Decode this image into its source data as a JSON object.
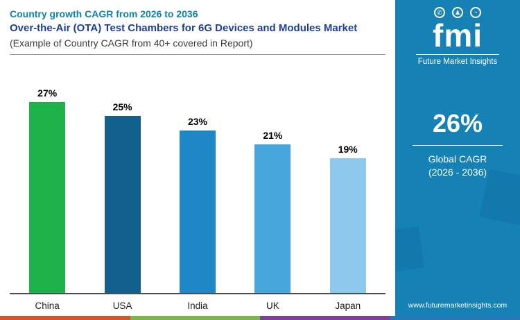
{
  "header": {
    "line1": "Country growth CAGR from 2026 to 2036",
    "line2": "Over-the-Air (OTA) Test Chambers for 6G Devices and Modules Market",
    "line3": "(Example of Country CAGR from 40+ covered in Report)"
  },
  "chart_data": {
    "type": "bar",
    "title": "Country growth CAGR from 2026 to 2036",
    "categories": [
      "China",
      "USA",
      "India",
      "UK",
      "Japan"
    ],
    "values": [
      27,
      25,
      23,
      21,
      19
    ],
    "value_labels": [
      "27%",
      "25%",
      "23%",
      "21%",
      "19%"
    ],
    "bar_colors": [
      "#1fb24b",
      "#11608d",
      "#1e88c7",
      "#47a6dc",
      "#8ec8ea"
    ],
    "ylim": [
      0,
      27
    ],
    "grid": false,
    "legend": "none",
    "xlabel": "",
    "ylabel": ""
  },
  "sidebar": {
    "background_color": "#1581b5",
    "logo_text": "fmi",
    "logo_subtext": "Future Market Insights",
    "logo_icons": [
      "chat-icon",
      "person-icon",
      "globe-icon"
    ],
    "logo_icon_glyphs": [
      "✆",
      "♟",
      "◔"
    ],
    "cagr_value": "26%",
    "cagr_label_line1": "Global CAGR",
    "cagr_label_line2": "(2026 - 2036)",
    "website": "www.futuremarketinsights.com"
  },
  "footer_strip_colors": [
    "#d3562b",
    "#7ab648",
    "#7e3f98",
    "#2678b6"
  ]
}
